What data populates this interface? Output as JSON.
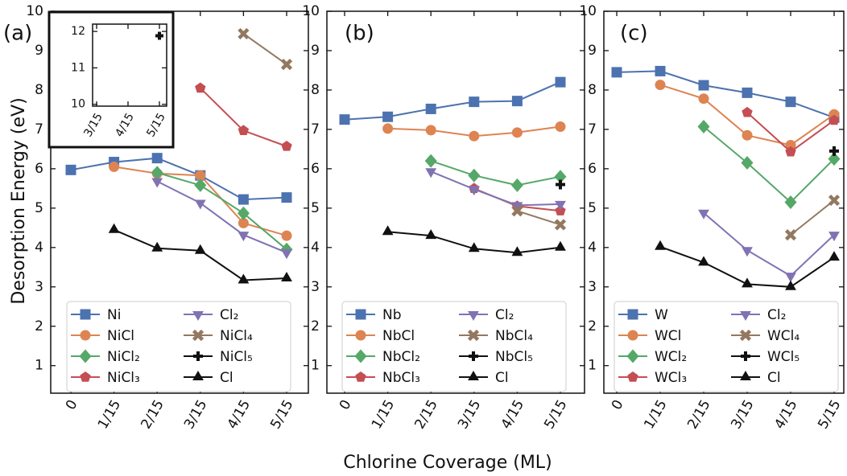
{
  "x_label": "Chlorine Coverage (ML)",
  "y_label": "Desorption Energy (eV)",
  "chart_data": [
    {
      "type": "line",
      "label": "(a)",
      "categories": [
        "0",
        "1/15",
        "2/15",
        "3/15",
        "4/15",
        "5/15"
      ],
      "ylim": [
        0.3,
        10
      ],
      "yticks": [
        1,
        2,
        3,
        4,
        5,
        6,
        7,
        8,
        9,
        10
      ],
      "legend": "lower left",
      "series": [
        {
          "name": "Ni",
          "color": "#4c72b0",
          "marker": "square",
          "values": [
            5.97,
            6.17,
            6.27,
            5.83,
            5.22,
            5.27
          ]
        },
        {
          "name": "NiCl",
          "color": "#dd8452",
          "marker": "circle",
          "values": [
            null,
            6.05,
            5.88,
            5.83,
            4.62,
            4.3
          ]
        },
        {
          "name": "NiCl₂",
          "color": "#55a868",
          "marker": "diamond",
          "values": [
            null,
            null,
            5.9,
            5.58,
            4.87,
            3.95
          ]
        },
        {
          "name": "NiCl₃",
          "color": "#c44e52",
          "marker": "pentagon",
          "values": [
            null,
            null,
            null,
            8.05,
            6.97,
            6.57
          ]
        },
        {
          "name": "Cl₂",
          "color": "#8172b3",
          "marker": "triangle-down",
          "values": [
            null,
            null,
            5.68,
            5.13,
            4.32,
            3.87
          ]
        },
        {
          "name": "NiCl₄",
          "color": "#937860",
          "marker": "x",
          "values": [
            null,
            null,
            null,
            null,
            9.43,
            8.65
          ]
        },
        {
          "name": "NiCl₅",
          "color": "#111111",
          "marker": "plus",
          "values": [
            null,
            null,
            null,
            null,
            null,
            null
          ]
        },
        {
          "name": "Cl",
          "color": "#111111",
          "marker": "triangle-up",
          "values": [
            null,
            4.45,
            3.98,
            3.92,
            3.17,
            3.22
          ]
        }
      ],
      "inset": {
        "categories": [
          "3/15",
          "4/15",
          "5/15"
        ],
        "ylim": [
          9.95,
          12.2
        ],
        "yticks": [
          10,
          11,
          12
        ],
        "series": [
          {
            "color": "#111111",
            "marker": "plus",
            "values": [
              null,
              null,
              11.88
            ]
          }
        ]
      }
    },
    {
      "type": "line",
      "label": "(b)",
      "categories": [
        "0",
        "1/15",
        "2/15",
        "3/15",
        "4/15",
        "5/15"
      ],
      "ylim": [
        0.3,
        10
      ],
      "yticks": [
        1,
        2,
        3,
        4,
        5,
        6,
        7,
        8,
        9,
        10
      ],
      "legend": "lower left",
      "series": [
        {
          "name": "Nb",
          "color": "#4c72b0",
          "marker": "square",
          "values": [
            7.25,
            7.32,
            7.52,
            7.7,
            7.72,
            8.2
          ]
        },
        {
          "name": "NbCl",
          "color": "#dd8452",
          "marker": "circle",
          "values": [
            null,
            7.02,
            6.98,
            6.83,
            6.92,
            7.07
          ]
        },
        {
          "name": "NbCl₂",
          "color": "#55a868",
          "marker": "diamond",
          "values": [
            null,
            null,
            6.2,
            5.83,
            5.58,
            5.8
          ]
        },
        {
          "name": "NbCl₃",
          "color": "#c44e52",
          "marker": "pentagon",
          "values": [
            null,
            null,
            null,
            5.5,
            5.05,
            4.93
          ]
        },
        {
          "name": "Cl₂",
          "color": "#8172b3",
          "marker": "triangle-down",
          "values": [
            null,
            null,
            5.93,
            5.48,
            5.07,
            5.1
          ]
        },
        {
          "name": "NbCl₄",
          "color": "#937860",
          "marker": "x",
          "values": [
            null,
            null,
            null,
            null,
            4.93,
            4.58
          ]
        },
        {
          "name": "NbCl₅",
          "color": "#111111",
          "marker": "plus",
          "values": [
            null,
            null,
            null,
            null,
            null,
            5.6
          ]
        },
        {
          "name": "Cl",
          "color": "#111111",
          "marker": "triangle-up",
          "values": [
            null,
            4.4,
            4.3,
            3.97,
            3.87,
            4.0
          ]
        }
      ]
    },
    {
      "type": "line",
      "label": "(c)",
      "categories": [
        "0",
        "1/15",
        "2/15",
        "3/15",
        "4/15",
        "5/15"
      ],
      "ylim": [
        0.3,
        10
      ],
      "yticks": [
        1,
        2,
        3,
        4,
        5,
        6,
        7,
        8,
        9,
        10
      ],
      "legend": "lower left",
      "series": [
        {
          "name": "W",
          "color": "#4c72b0",
          "marker": "square",
          "values": [
            8.45,
            8.48,
            8.12,
            7.93,
            7.7,
            7.3
          ]
        },
        {
          "name": "WCl",
          "color": "#dd8452",
          "marker": "circle",
          "values": [
            null,
            8.13,
            7.78,
            6.85,
            6.6,
            7.38
          ]
        },
        {
          "name": "WCl₂",
          "color": "#55a868",
          "marker": "diamond",
          "values": [
            null,
            null,
            7.07,
            6.15,
            5.15,
            6.25
          ]
        },
        {
          "name": "WCl₃",
          "color": "#c44e52",
          "marker": "pentagon",
          "values": [
            null,
            null,
            null,
            7.43,
            6.43,
            7.23
          ]
        },
        {
          "name": "Cl₂",
          "color": "#8172b3",
          "marker": "triangle-down",
          "values": [
            null,
            null,
            4.88,
            3.93,
            3.28,
            4.32
          ]
        },
        {
          "name": "WCl₄",
          "color": "#937860",
          "marker": "x",
          "values": [
            null,
            null,
            null,
            null,
            4.32,
            5.2
          ]
        },
        {
          "name": "WCl₅",
          "color": "#111111",
          "marker": "plus",
          "values": [
            null,
            null,
            null,
            null,
            null,
            6.45
          ]
        },
        {
          "name": "Cl",
          "color": "#111111",
          "marker": "triangle-up",
          "values": [
            null,
            4.02,
            3.62,
            3.07,
            3.0,
            3.75
          ]
        }
      ]
    }
  ]
}
